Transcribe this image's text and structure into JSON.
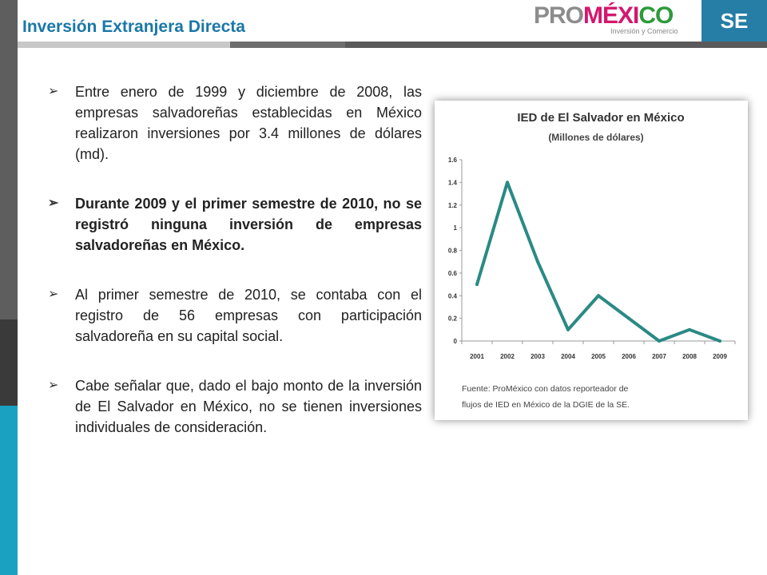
{
  "header": {
    "title": "Inversión Extranjera Directa",
    "logo_text": "PROMÉXICO",
    "logo_subtitle": "Inversión y Comercio",
    "se_label": "SE"
  },
  "bullets": [
    {
      "text": "Entre enero de 1999 y diciembre de 2008, las empresas salvadoreñas establecidas en México realizaron inversiones por  3.4 millones de dólares (md)."
    },
    {
      "text": "Durante 2009 y el primer semestre de 2010, no se registró ninguna inversión de empresas salvadoreñas en México."
    },
    {
      "text": "Al primer semestre de 2010, se contaba con el registro de 56 empresas con participación salvadoreña en su capital social."
    },
    {
      "text": "Cabe señalar que, dado el bajo monto de la inversión de El Salvador en México, no se tienen inversiones individuales de consideración."
    }
  ],
  "colors": {
    "accent": "#1b77a8",
    "line": "#2a8a84",
    "se_box": "#267ea6"
  },
  "chart_data": {
    "type": "line",
    "title": "IED de El Salvador en México",
    "subtitle": "(Millones de dólares)",
    "x": [
      "2001",
      "2002",
      "2003",
      "2004",
      "2005",
      "2006",
      "2007",
      "2008",
      "2009"
    ],
    "series": [
      {
        "values": [
          0.5,
          1.4,
          0.7,
          0.1,
          0.4,
          0.2,
          0.0,
          0.1,
          0.0
        ]
      }
    ],
    "yticks": [
      "0",
      "0.2",
      "0.4",
      "0.6",
      "0.8",
      "1",
      "1.2",
      "1.4",
      "1.6"
    ],
    "ylim": [
      0,
      1.6
    ],
    "grid": false,
    "source_line1": "Fuente: ProMéxico con datos reporteador de",
    "source_line2": "flujos de IED en México de la DGIE de la SE."
  }
}
